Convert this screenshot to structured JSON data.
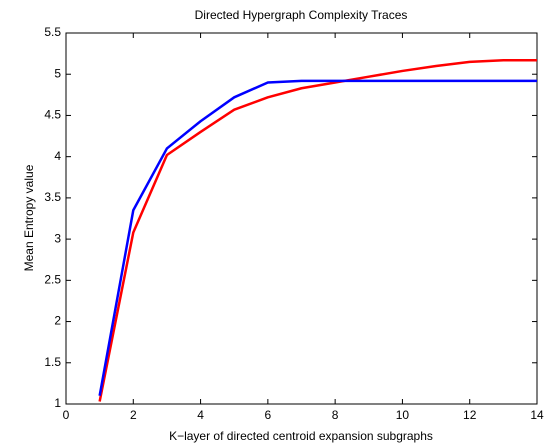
{
  "chart_data": {
    "type": "line",
    "title": "Directed Hypergraph Complexity Traces",
    "xlabel": "K−layer of directed centroid expansion subgraphs",
    "ylabel": "Mean Entropy value",
    "x": [
      1,
      2,
      3,
      4,
      5,
      6,
      7,
      8,
      9,
      10,
      11,
      12,
      13,
      14
    ],
    "series": [
      {
        "color": "#ff0000",
        "values": [
          1.03,
          3.08,
          4.02,
          4.3,
          4.57,
          4.72,
          4.83,
          4.9,
          4.97,
          5.04,
          5.1,
          5.15,
          5.17,
          5.17
        ]
      },
      {
        "color": "#0000ff",
        "values": [
          1.1,
          3.35,
          4.1,
          4.43,
          4.72,
          4.9,
          4.92,
          4.92,
          4.92,
          4.92,
          4.92,
          4.92,
          4.92,
          4.92
        ]
      }
    ],
    "xlim": [
      0,
      14
    ],
    "xticks": [
      0,
      2,
      4,
      6,
      8,
      10,
      12,
      14
    ],
    "ylim": [
      1,
      5.5
    ],
    "yticks": [
      1,
      1.5,
      2,
      2.5,
      3,
      3.5,
      4,
      4.5,
      5,
      5.5
    ],
    "grid": false
  }
}
